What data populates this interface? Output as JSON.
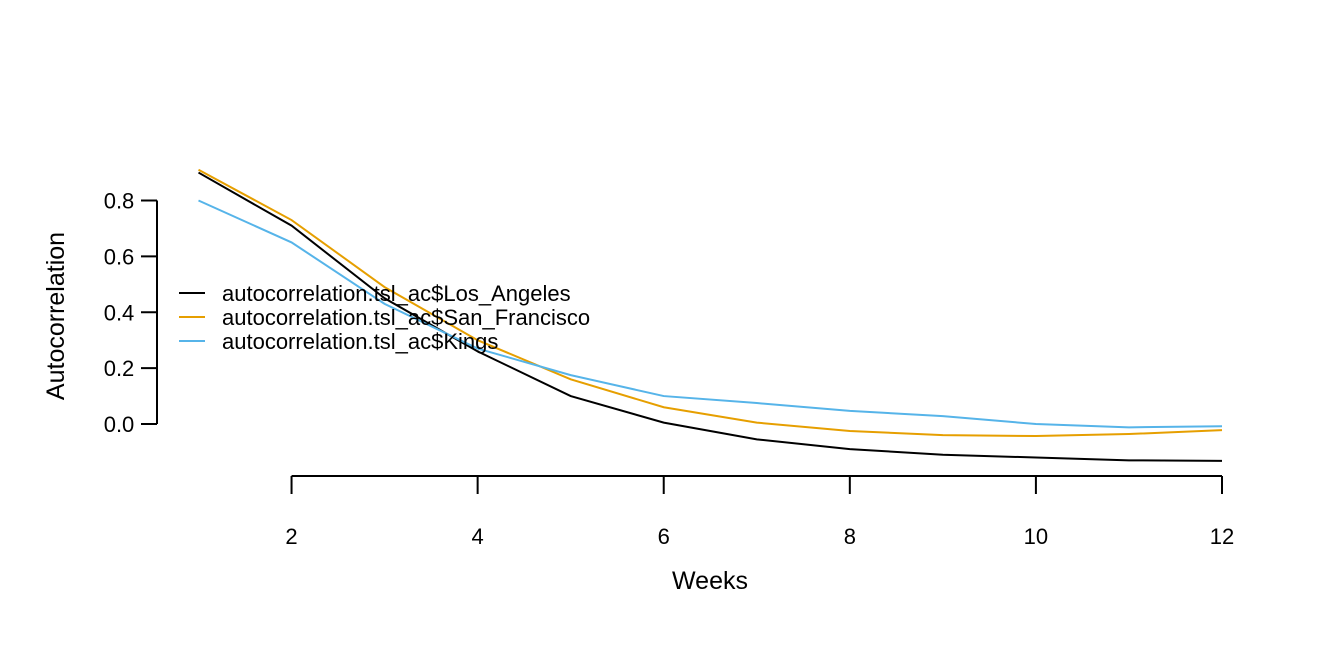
{
  "chart_data": {
    "type": "line",
    "title": "",
    "xlabel": "Weeks",
    "ylabel": "Autocorrelation",
    "x": [
      1,
      2,
      3,
      4,
      5,
      6,
      7,
      8,
      9,
      10,
      11,
      12
    ],
    "xlim": [
      1,
      12
    ],
    "ylim": [
      -0.15,
      0.9
    ],
    "xticks": [
      2,
      4,
      6,
      8,
      10,
      12
    ],
    "xtick_labels": [
      "2",
      "4",
      "6",
      "8",
      "10",
      "12"
    ],
    "yticks": [
      0,
      0.2,
      0.4,
      0.6,
      0.8
    ],
    "ytick_labels": [
      "0.0",
      "0.2",
      "0.4",
      "0.6",
      "0.8"
    ],
    "grid": false,
    "legend_position": "left",
    "series": [
      {
        "name": "autocorrelation.tsl_ac$Los_Angeles",
        "color": "#000000",
        "values": [
          0.9,
          0.71,
          0.45,
          0.26,
          0.1,
          0.005,
          -0.055,
          -0.09,
          -0.11,
          -0.12,
          -0.13,
          -0.132
        ]
      },
      {
        "name": "autocorrelation.tsl_ac$San_Francisco",
        "color": "#E69F00",
        "values": [
          0.91,
          0.73,
          0.49,
          0.3,
          0.16,
          0.06,
          0.005,
          -0.025,
          -0.04,
          -0.043,
          -0.036,
          -0.022
        ]
      },
      {
        "name": "autocorrelation.tsl_ac$Kings",
        "color": "#56B4E9",
        "values": [
          0.8,
          0.65,
          0.43,
          0.27,
          0.175,
          0.1,
          0.075,
          0.047,
          0.028,
          0.0,
          -0.012,
          -0.008
        ]
      }
    ]
  }
}
